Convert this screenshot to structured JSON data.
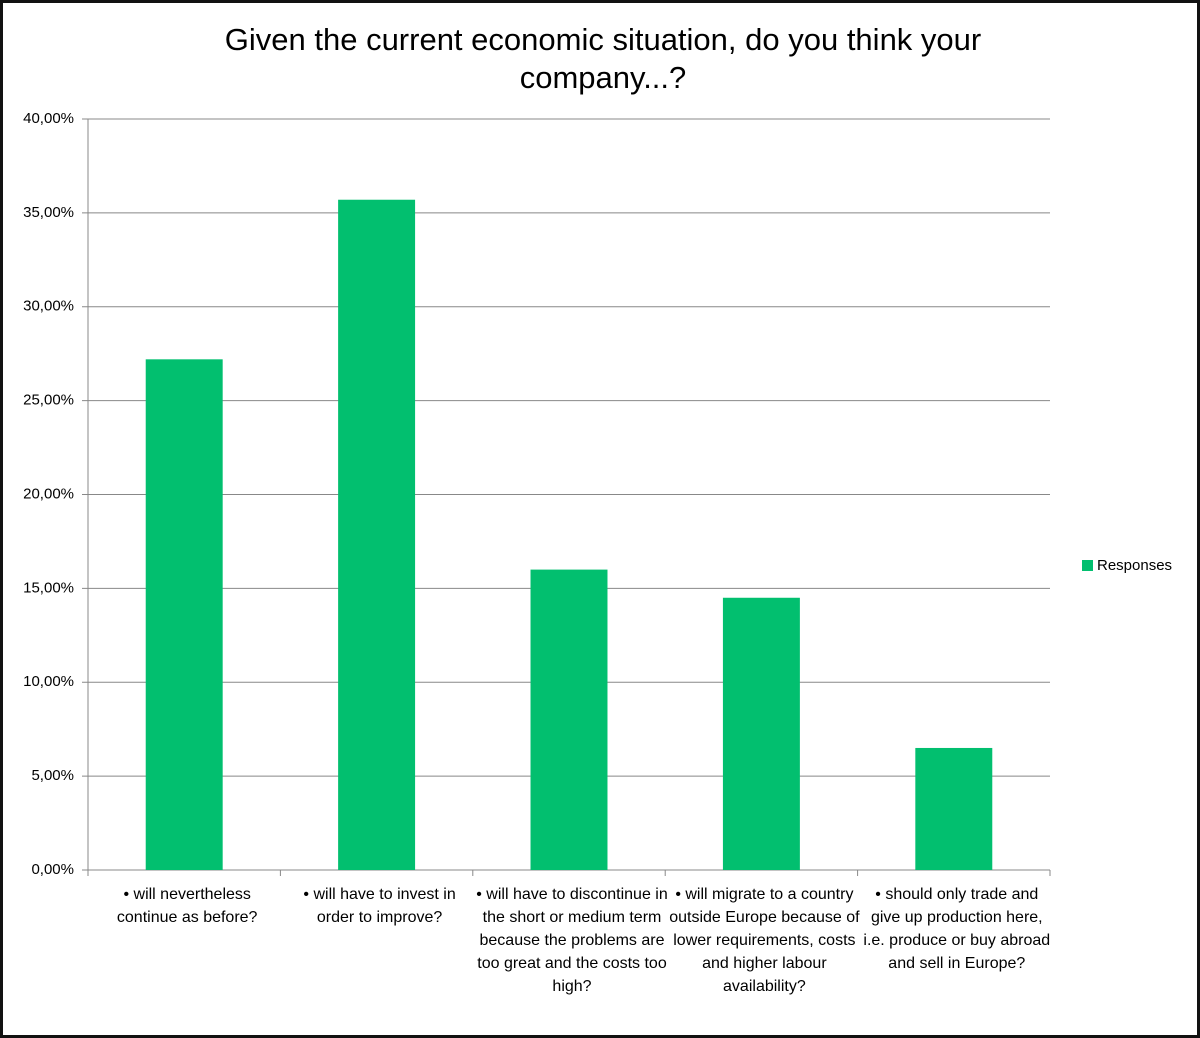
{
  "chart_data": {
    "type": "bar",
    "title": "Given the current economic situation, do you think your company...?",
    "categories": [
      "• will nevertheless continue as before?",
      "• will have to invest in order to improve?",
      "• will have to discontinue in the short or medium term because the problems are too great and the costs too high?",
      "• will migrate to a country outside Europe because of lower requirements, costs and higher labour availability?",
      "• should only trade and give up production here, i.e. produce or buy abroad and sell in Europe?"
    ],
    "series": [
      {
        "name": "Responses",
        "color": "#02bf6f",
        "values": [
          27.2,
          35.7,
          16.0,
          14.5,
          6.5
        ]
      }
    ],
    "ylim": [
      0,
      40
    ],
    "yticks": [
      {
        "value": 0,
        "label": "0,00%"
      },
      {
        "value": 5,
        "label": "5,00%"
      },
      {
        "value": 10,
        "label": "10,00%"
      },
      {
        "value": 15,
        "label": "15,00%"
      },
      {
        "value": 20,
        "label": "20,00%"
      },
      {
        "value": 25,
        "label": "25,00%"
      },
      {
        "value": 30,
        "label": "30,00%"
      },
      {
        "value": 35,
        "label": "35,00%"
      },
      {
        "value": 40,
        "label": "40,00%"
      }
    ],
    "grid": true,
    "legend": "right"
  }
}
